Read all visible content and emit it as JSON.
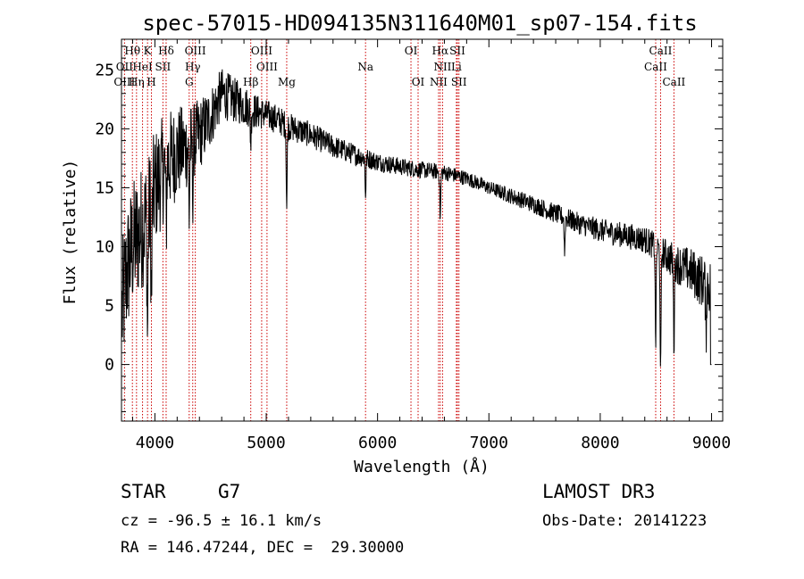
{
  "chart_data": {
    "type": "line",
    "title": "spec-57015-HD094135N311640M01_sp07-154.fits",
    "xlabel": "Wavelength (Å)",
    "ylabel": "Flux (relative)",
    "xlim": [
      3700,
      9100
    ],
    "ylim": [
      -4.8,
      27.6
    ],
    "xticks": [
      4000,
      5000,
      6000,
      7000,
      8000,
      9000
    ],
    "yticks": [
      0,
      5,
      10,
      15,
      20,
      25
    ],
    "series": [
      {
        "name": "spectrum",
        "continuum": {
          "x": [
            3700,
            3750,
            3800,
            3850,
            3900,
            3950,
            4000,
            4100,
            4200,
            4300,
            4400,
            4500,
            4600,
            4700,
            4800,
            4900,
            5000,
            5100,
            5200,
            5400,
            5600,
            5800,
            6000,
            6200,
            6400,
            6600,
            6800,
            7000,
            7200,
            7400,
            7600,
            7800,
            8000,
            8200,
            8400,
            8500,
            8600,
            8700,
            8800,
            8900,
            9000
          ],
          "y": [
            4,
            8,
            10,
            11,
            12,
            13,
            15,
            17,
            18,
            18.5,
            19.5,
            21,
            23,
            22.5,
            22.0,
            21.5,
            21.2,
            20.8,
            20.2,
            19.5,
            18.5,
            17.8,
            17.2,
            16.8,
            16.5,
            16.3,
            15.8,
            15.0,
            14.3,
            13.6,
            12.8,
            12.0,
            11.4,
            11.0,
            10.6,
            10.0,
            9.2,
            8.5,
            8.0,
            7.2,
            6.5
          ]
        },
        "noise": [
          {
            "x": 3700,
            "amp": 6
          },
          {
            "x": 4000,
            "amp": 5
          },
          {
            "x": 4300,
            "amp": 3.5
          },
          {
            "x": 4600,
            "amp": 2.2
          },
          {
            "x": 5000,
            "amp": 1.3
          },
          {
            "x": 6000,
            "amp": 0.8
          },
          {
            "x": 7000,
            "amp": 0.6
          },
          {
            "x": 8000,
            "amp": 1.0
          },
          {
            "x": 8500,
            "amp": 1.2
          },
          {
            "x": 9000,
            "amp": 2.5
          }
        ],
        "features": [
          {
            "x": 3934,
            "depth": 10
          },
          {
            "x": 3969,
            "depth": 9
          },
          {
            "x": 4101,
            "depth": 5
          },
          {
            "x": 4308,
            "depth": 6
          },
          {
            "x": 4340,
            "depth": 4
          },
          {
            "x": 4861,
            "depth": 3
          },
          {
            "x": 5184,
            "depth": 7
          },
          {
            "x": 5892,
            "depth": 3
          },
          {
            "x": 6563,
            "depth": 4
          },
          {
            "x": 7680,
            "depth": 3
          },
          {
            "x": 8498,
            "depth": 8
          },
          {
            "x": 8542,
            "depth": 11
          },
          {
            "x": 8662,
            "depth": 7
          },
          {
            "x": 8950,
            "depth": 4
          }
        ]
      }
    ],
    "spectral_lines": [
      {
        "label": "Hθ",
        "x": 3798,
        "row": 0
      },
      {
        "label": "K",
        "x": 3934,
        "row": 0
      },
      {
        "label": "Hδ",
        "x": 4101,
        "row": 0
      },
      {
        "label": "OIII",
        "x": 4363,
        "row": 0
      },
      {
        "label": "OIII",
        "x": 4959,
        "row": 0
      },
      {
        "label": "OI",
        "x": 6300,
        "row": 0
      },
      {
        "label": "Hα",
        "x": 6563,
        "row": 0
      },
      {
        "label": "SII",
        "x": 6717,
        "row": 0
      },
      {
        "label": "CaII",
        "x": 8542,
        "row": 0
      },
      {
        "label": "OII",
        "x": 3727,
        "row": 1
      },
      {
        "label": "HeI",
        "x": 3889,
        "row": 1
      },
      {
        "label": "SII",
        "x": 4072,
        "row": 1
      },
      {
        "label": "Hγ",
        "x": 4340,
        "row": 1
      },
      {
        "label": "OIII",
        "x": 5007,
        "row": 1
      },
      {
        "label": "Na",
        "x": 5892,
        "row": 1
      },
      {
        "label": "NII",
        "x": 6584,
        "row": 1
      },
      {
        "label": "Li",
        "x": 6708,
        "row": 1
      },
      {
        "label": "CaII",
        "x": 8498,
        "row": 1
      },
      {
        "label": "OIII",
        "x": 3727,
        "row": 2
      },
      {
        "label": "Hη",
        "x": 3835,
        "row": 2
      },
      {
        "label": "H",
        "x": 3969,
        "row": 2
      },
      {
        "label": "G",
        "x": 4308,
        "row": 2
      },
      {
        "label": "Hβ",
        "x": 4861,
        "row": 2
      },
      {
        "label": "Mg",
        "x": 5184,
        "row": 2
      },
      {
        "label": "OI",
        "x": 6364,
        "row": 2
      },
      {
        "label": "NII",
        "x": 6548,
        "row": 2
      },
      {
        "label": "SII",
        "x": 6731,
        "row": 2
      },
      {
        "label": "CaII",
        "x": 8662,
        "row": 2
      }
    ],
    "line_color": "#000000",
    "marker_color": "#cc0000"
  },
  "info": {
    "object_class": "STAR",
    "subclass": "G7",
    "survey": "LAMOST DR3",
    "redshift": "cz = -96.5 ± 16.1 km/s",
    "obs_date": "Obs-Date: 20141223",
    "coords": "RA = 146.47244, DEC =  29.30000"
  }
}
